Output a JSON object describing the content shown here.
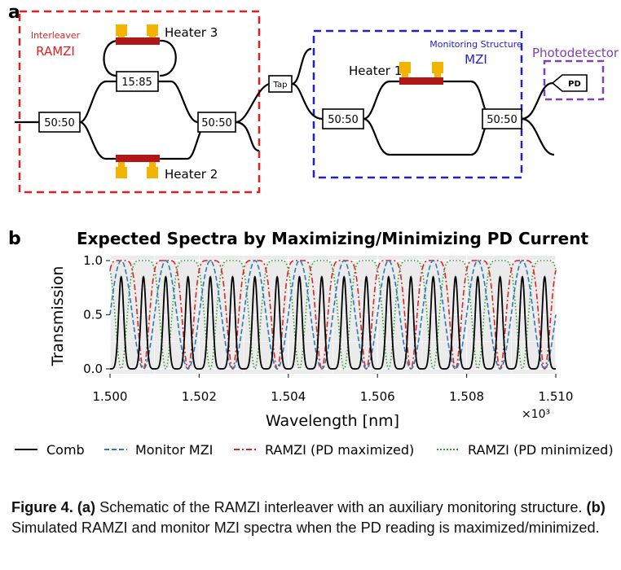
{
  "panel_a": {
    "label": "a",
    "ramzi_title_line1": "Interleaver",
    "ramzi_title_line2": "RAMZI",
    "mzi_title_line1": "Monitoring Structure",
    "mzi_title_line2": "MZI",
    "photodetector_title": "Photodetector",
    "pd_label": "PD",
    "heater3": "Heater 3",
    "heater2": "Heater 2",
    "heater1": "Heater 1",
    "coupler_1585": "15:85",
    "coupler_in": "50:50",
    "coupler_ramzi_out": "50:50",
    "tap": "Tap",
    "coupler_mzi_in": "50:50",
    "coupler_mzi_out": "50:50",
    "colors": {
      "ramzi_box": "#e02020",
      "mzi_box": "#2020d0",
      "pd_box": "#8040b0",
      "heater_bar": "#b01818",
      "heater_pad": "#f2b400"
    }
  },
  "panel_b": {
    "label": "b",
    "legend": [
      "Comb",
      "Monitor MZI",
      "RAMZI (PD maximized)",
      "RAMZI (PD minimized)"
    ]
  },
  "chart_data": {
    "type": "line",
    "title": "Expected Spectra by Maximizing/Minimizing PD Current",
    "xlabel": "Wavelength [nm]",
    "ylabel": "Transmission",
    "x_multiplier": "×10³",
    "xlim": [
      1.5,
      1.51
    ],
    "ylim": [
      0.0,
      1.0
    ],
    "x_ticks": [
      "1.500",
      "1.502",
      "1.504",
      "1.506",
      "1.508",
      "1.510"
    ],
    "y_ticks": [
      "0.0",
      "0.5",
      "1.0"
    ],
    "grid": true,
    "legend_position": "bottom",
    "comb_peaks_x": [
      1.50025,
      1.50075,
      1.50125,
      1.50175,
      1.50225,
      1.50275,
      1.50325,
      1.50375,
      1.50425,
      1.50475,
      1.50525,
      1.50575,
      1.50625,
      1.50675,
      1.50725,
      1.50775,
      1.50825,
      1.50875,
      1.50925,
      1.50975
    ],
    "comb_peak_height": 0.85,
    "series": [
      {
        "name": "Comb",
        "style": "solid",
        "color": "#000000"
      },
      {
        "name": "Monitor MZI",
        "style": "dashed",
        "color": "#2a7ab8",
        "period": 0.001,
        "peak_x": 1.50025
      },
      {
        "name": "RAMZI (PD maximized)",
        "style": "dashdot",
        "color": "#d62728",
        "period": 0.001,
        "center_x": 1.50025
      },
      {
        "name": "RAMZI (PD minimized)",
        "style": "dotted",
        "color": "#2ca02c",
        "period": 0.001,
        "center_x": 1.50075
      }
    ]
  },
  "caption": {
    "fig_label": "Figure 4.",
    "a_label": "(a)",
    "a_text": " Schematic of the RAMZI interleaver with an auxiliary monitoring structure. ",
    "b_label": "(b)",
    "b_text": " Simulated RAMZI and monitor MZI spectra when the PD reading is maximized/minimized."
  }
}
